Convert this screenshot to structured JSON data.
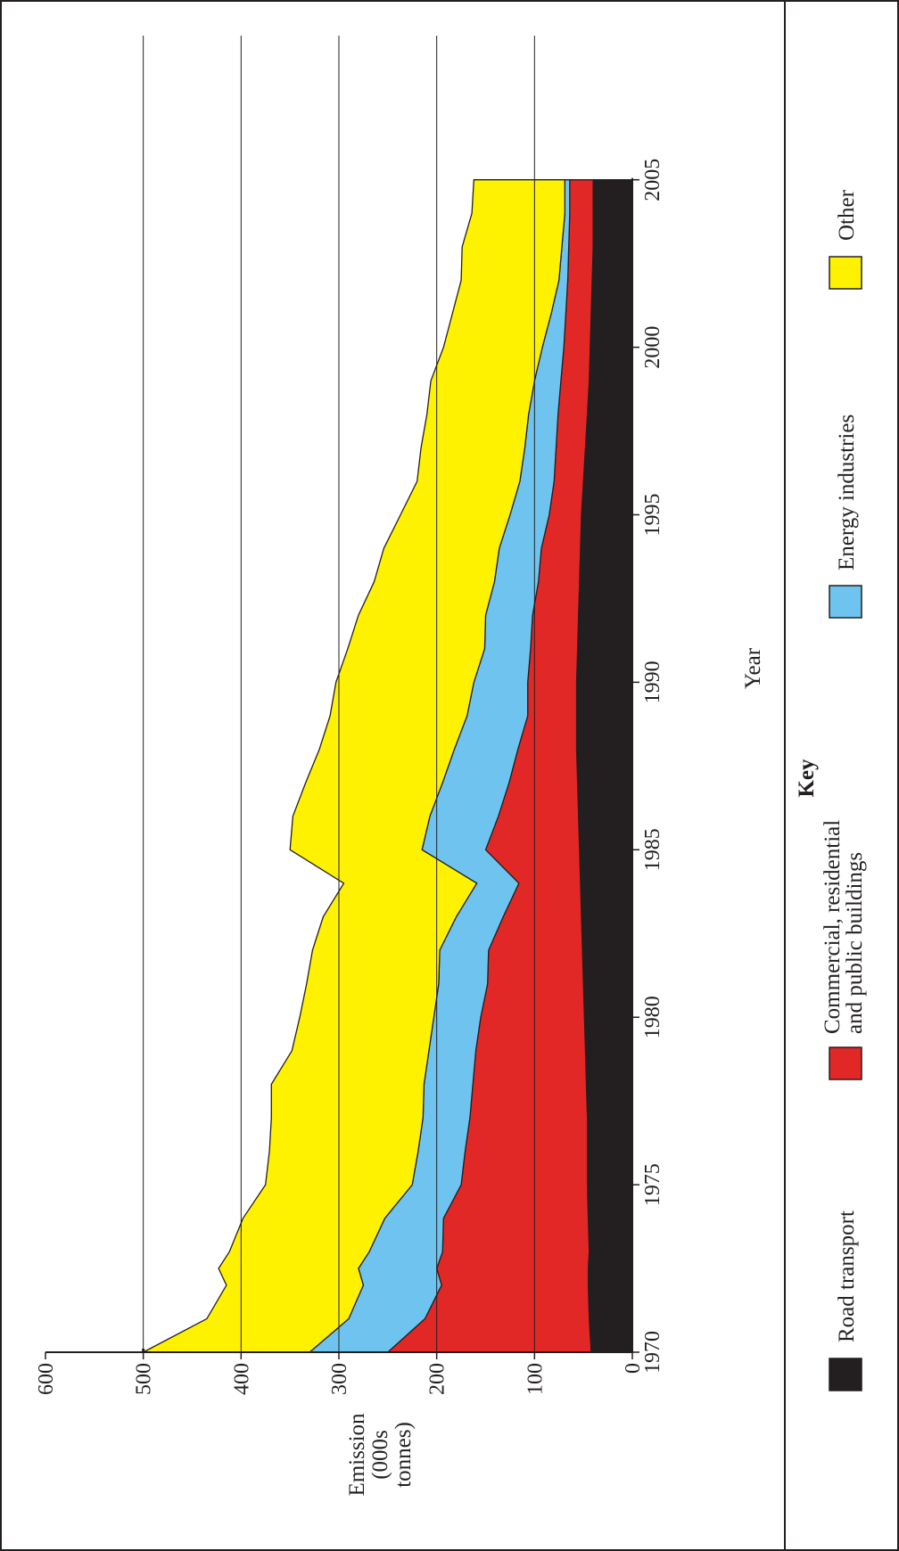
{
  "chart_data": {
    "type": "area",
    "stacked": true,
    "orientation": "rotated 90 degrees clockwise",
    "xlabel": "Year",
    "ylabel": [
      "Emission",
      "(000s",
      "tonnes)"
    ],
    "xlim": [
      1970,
      2005
    ],
    "ylim": [
      0,
      600
    ],
    "x_ticks": [
      "1970",
      "1975",
      "1980",
      "1985",
      "1990",
      "1995",
      "2000",
      "2005"
    ],
    "y_ticks": [
      "0",
      "100",
      "200",
      "300",
      "400",
      "500",
      "600"
    ],
    "grid": "horizontal at 100, 200, 300, 400, 500",
    "x": [
      1970,
      1971,
      1972,
      1972.5,
      1973,
      1974,
      1975,
      1976,
      1977,
      1978,
      1979,
      1980,
      1981,
      1982,
      1983,
      1984,
      1985,
      1986,
      1987,
      1988,
      1989,
      1990,
      1991,
      1992,
      1993,
      1994,
      1995,
      1996,
      1997,
      1998,
      1999,
      2000,
      2001,
      2002,
      2003,
      2004,
      2005
    ],
    "series": [
      {
        "name": "Road transport",
        "color": "#231f20",
        "values": [
          42,
          44,
          45,
          45,
          44,
          45,
          46,
          46,
          46,
          47,
          48,
          49,
          50,
          51,
          52,
          53,
          54,
          55,
          56,
          57,
          57,
          57,
          56,
          55,
          54,
          53,
          52,
          50,
          48,
          46,
          44,
          43,
          42,
          41,
          40,
          40,
          40
        ]
      },
      {
        "name": "Commercial, residential and public buildings",
        "color": "#e22826",
        "values": [
          208,
          168,
          150,
          155,
          150,
          148,
          129,
          125,
          120,
          116,
          112,
          106,
          98,
          96,
          80,
          63,
          96,
          82,
          70,
          60,
          50,
          50,
          48,
          47,
          42,
          40,
          33,
          30,
          30,
          30,
          29,
          27,
          26,
          25,
          25,
          24,
          24
        ]
      },
      {
        "name": "Energy industries",
        "color": "#6ec4ee",
        "values": [
          80,
          78,
          80,
          80,
          75,
          60,
          50,
          48,
          48,
          50,
          48,
          48,
          50,
          50,
          48,
          43,
          65,
          70,
          68,
          65,
          62,
          55,
          47,
          48,
          45,
          43,
          40,
          35,
          32,
          30,
          27,
          22,
          15,
          9,
          7,
          5,
          5
        ]
      },
      {
        "name": "Other",
        "color": "#fff200",
        "values": [
          170,
          145,
          140,
          143,
          143,
          145,
          150,
          152,
          155,
          156,
          140,
          137,
          135,
          130,
          136,
          136,
          135,
          140,
          140,
          138,
          140,
          141,
          140,
          130,
          123,
          118,
          112,
          105,
          106,
          104,
          106,
          101,
          101,
          100,
          102,
          95,
          93
        ]
      }
    ],
    "legend": {
      "title": "Key",
      "placement": "bottom",
      "entries": [
        {
          "label": "Road transport",
          "color": "#231f20"
        },
        {
          "label": "Commercial, residential and public buildings",
          "lines": [
            "Commercial, residential",
            "and public buildings"
          ],
          "color": "#e22826"
        },
        {
          "label": "Energy industries",
          "color": "#6ec4ee"
        },
        {
          "label": "Other",
          "color": "#fff200"
        }
      ]
    }
  }
}
